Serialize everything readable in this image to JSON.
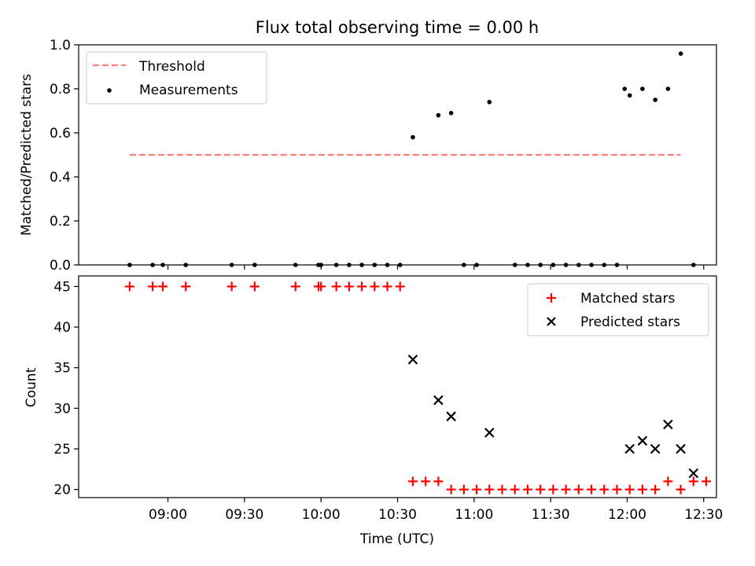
{
  "colors": {
    "threshold": "#ff8080",
    "matched": "#ff0000",
    "points": "#000000"
  },
  "chart_data": [
    {
      "type": "scatter",
      "title": "Flux total observing time = 0.00 h",
      "xlabel": "",
      "ylabel": "Matched/Predicted stars",
      "xlim": [
        505,
        755
      ],
      "ylim": [
        0,
        1.0
      ],
      "yticks": [
        "0.0",
        "0.2",
        "0.4",
        "0.6",
        "0.8",
        "1.0"
      ],
      "yticks_values": [
        0,
        0.2,
        0.4,
        0.6,
        0.8,
        1.0
      ],
      "legend_position": "upper-left",
      "legend": [
        "Threshold",
        "Measurements"
      ],
      "threshold": {
        "name": "Threshold",
        "y": 0.5,
        "x_start": 525,
        "x_end": 741
      },
      "series": [
        {
          "name": "Measurements",
          "points": [
            [
              525,
              0
            ],
            [
              534,
              0
            ],
            [
              538,
              0
            ],
            [
              547,
              0
            ],
            [
              565,
              0
            ],
            [
              574,
              0
            ],
            [
              590,
              0
            ],
            [
              599,
              0
            ],
            [
              600,
              0
            ],
            [
              606,
              0
            ],
            [
              611,
              0
            ],
            [
              616,
              0
            ],
            [
              621,
              0
            ],
            [
              626,
              0
            ],
            [
              631,
              0
            ],
            [
              636,
              0.58
            ],
            [
              646,
              0.68
            ],
            [
              651,
              0.69
            ],
            [
              656,
              0
            ],
            [
              661,
              0
            ],
            [
              666,
              0.74
            ],
            [
              676,
              0
            ],
            [
              681,
              0
            ],
            [
              686,
              0
            ],
            [
              691,
              0
            ],
            [
              696,
              0
            ],
            [
              701,
              0
            ],
            [
              706,
              0
            ],
            [
              711,
              0
            ],
            [
              716,
              0
            ],
            [
              719,
              0.8
            ],
            [
              721,
              0.77
            ],
            [
              726,
              0.8
            ],
            [
              731,
              0.75
            ],
            [
              736,
              0.8
            ],
            [
              741,
              0.96
            ],
            [
              746,
              0
            ]
          ]
        }
      ]
    },
    {
      "type": "scatter",
      "title": "",
      "xlabel": "Time (UTC)",
      "ylabel": "Count",
      "xlim": [
        505,
        755
      ],
      "ylim": [
        19,
        46.3
      ],
      "yticks": [
        "20",
        "25",
        "30",
        "35",
        "40",
        "45"
      ],
      "yticks_values": [
        20,
        25,
        30,
        35,
        40,
        45
      ],
      "xticks": [
        "09:00",
        "09:30",
        "10:00",
        "10:30",
        "11:00",
        "11:30",
        "12:00",
        "12:30"
      ],
      "xticks_values": [
        540,
        570,
        600,
        630,
        660,
        690,
        720,
        750
      ],
      "legend_position": "upper-right",
      "legend": [
        "Matched stars",
        "Predicted stars"
      ],
      "series": [
        {
          "name": "Matched stars",
          "marker": "+",
          "points": [
            [
              525,
              45
            ],
            [
              534,
              45
            ],
            [
              538,
              45
            ],
            [
              547,
              45
            ],
            [
              565,
              45
            ],
            [
              574,
              45
            ],
            [
              590,
              45
            ],
            [
              599,
              45
            ],
            [
              600,
              45
            ],
            [
              606,
              45
            ],
            [
              611,
              45
            ],
            [
              616,
              45
            ],
            [
              621,
              45
            ],
            [
              626,
              45
            ],
            [
              631,
              45
            ],
            [
              636,
              21
            ],
            [
              641,
              21
            ],
            [
              646,
              21
            ],
            [
              651,
              20
            ],
            [
              656,
              20
            ],
            [
              661,
              20
            ],
            [
              666,
              20
            ],
            [
              671,
              20
            ],
            [
              676,
              20
            ],
            [
              681,
              20
            ],
            [
              686,
              20
            ],
            [
              691,
              20
            ],
            [
              696,
              20
            ],
            [
              701,
              20
            ],
            [
              706,
              20
            ],
            [
              711,
              20
            ],
            [
              716,
              20
            ],
            [
              721,
              20
            ],
            [
              726,
              20
            ],
            [
              731,
              20
            ],
            [
              736,
              21
            ],
            [
              741,
              20
            ],
            [
              746,
              21
            ],
            [
              751,
              21
            ]
          ]
        },
        {
          "name": "Predicted stars",
          "marker": "x",
          "points": [
            [
              636,
              36
            ],
            [
              646,
              31
            ],
            [
              651,
              29
            ],
            [
              666,
              27
            ],
            [
              721,
              25
            ],
            [
              726,
              26
            ],
            [
              731,
              25
            ],
            [
              736,
              28
            ],
            [
              741,
              25
            ],
            [
              746,
              22
            ]
          ]
        }
      ]
    }
  ]
}
